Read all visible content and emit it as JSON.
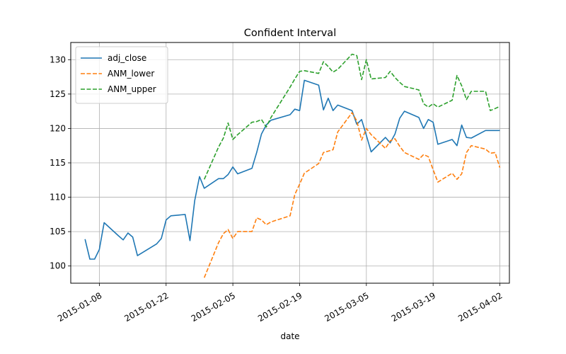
{
  "chart_data": {
    "type": "line",
    "title": "Confident Interval",
    "xlabel": "date",
    "ylabel": "",
    "grid": true,
    "legend_position": "top-left",
    "xlim": [
      "2015-01-02",
      "2015-04-04"
    ],
    "ylim": [
      97.5,
      132.5
    ],
    "x_ticks": [
      "2015-01-08",
      "2015-01-22",
      "2015-02-05",
      "2015-02-19",
      "2015-03-05",
      "2015-03-19",
      "2015-04-02"
    ],
    "y_ticks": [
      "100",
      "105",
      "110",
      "115",
      "120",
      "125",
      "130"
    ],
    "series": [
      {
        "name": "adj_close",
        "color": "#1f77b4",
        "style": "solid",
        "x": [
          "2015-01-05",
          "2015-01-06",
          "2015-01-07",
          "2015-01-08",
          "2015-01-09",
          "2015-01-12",
          "2015-01-13",
          "2015-01-14",
          "2015-01-15",
          "2015-01-16",
          "2015-01-20",
          "2015-01-21",
          "2015-01-22",
          "2015-01-23",
          "2015-01-26",
          "2015-01-27",
          "2015-01-28",
          "2015-01-29",
          "2015-01-30",
          "2015-02-02",
          "2015-02-03",
          "2015-02-04",
          "2015-02-05",
          "2015-02-06",
          "2015-02-09",
          "2015-02-10",
          "2015-02-11",
          "2015-02-12",
          "2015-02-13",
          "2015-02-17",
          "2015-02-18",
          "2015-02-19",
          "2015-02-20",
          "2015-02-23",
          "2015-02-24",
          "2015-02-25",
          "2015-02-26",
          "2015-02-27",
          "2015-03-02",
          "2015-03-03",
          "2015-03-04",
          "2015-03-05",
          "2015-03-06",
          "2015-03-09",
          "2015-03-10",
          "2015-03-11",
          "2015-03-12",
          "2015-03-13",
          "2015-03-16",
          "2015-03-17",
          "2015-03-18",
          "2015-03-19",
          "2015-03-20",
          "2015-03-23",
          "2015-03-24",
          "2015-03-25",
          "2015-03-26",
          "2015-03-27",
          "2015-03-30",
          "2015-03-31",
          "2015-04-01",
          "2015-04-02"
        ],
        "y": [
          103.9,
          101.0,
          101.0,
          102.4,
          106.3,
          104.4,
          103.8,
          104.8,
          104.2,
          101.5,
          103.2,
          104.0,
          106.7,
          107.3,
          107.5,
          103.7,
          109.5,
          113.0,
          111.3,
          112.7,
          112.7,
          113.3,
          114.4,
          113.4,
          114.2,
          116.5,
          119.2,
          120.5,
          121.2,
          122.0,
          122.8,
          122.6,
          127.0,
          126.3,
          122.7,
          124.4,
          122.6,
          123.4,
          122.6,
          120.6,
          121.3,
          119.0,
          116.6,
          118.7,
          117.9,
          119.2,
          121.5,
          122.5,
          121.6,
          120.0,
          121.3,
          120.9,
          117.7,
          118.4,
          117.5,
          120.5,
          118.7,
          118.6,
          119.7,
          119.7,
          119.7,
          119.7
        ]
      },
      {
        "name": "ANM_lower",
        "color": "#ff7f0e",
        "style": "dashed",
        "x": [
          "2015-01-30",
          "2015-02-02",
          "2015-02-03",
          "2015-02-04",
          "2015-02-05",
          "2015-02-06",
          "2015-02-09",
          "2015-02-10",
          "2015-02-11",
          "2015-02-12",
          "2015-02-13",
          "2015-02-17",
          "2015-02-18",
          "2015-02-19",
          "2015-02-20",
          "2015-02-23",
          "2015-02-24",
          "2015-02-25",
          "2015-02-26",
          "2015-02-27",
          "2015-03-02",
          "2015-03-03",
          "2015-03-04",
          "2015-03-05",
          "2015-03-06",
          "2015-03-09",
          "2015-03-10",
          "2015-03-11",
          "2015-03-12",
          "2015-03-13",
          "2015-03-16",
          "2015-03-17",
          "2015-03-18",
          "2015-03-19",
          "2015-03-20",
          "2015-03-23",
          "2015-03-24",
          "2015-03-25",
          "2015-03-26",
          "2015-03-27",
          "2015-03-30",
          "2015-03-31",
          "2015-04-01",
          "2015-04-02"
        ],
        "y": [
          98.3,
          103.4,
          104.7,
          105.3,
          104.0,
          105.0,
          105.0,
          107.0,
          106.7,
          106.0,
          106.4,
          107.3,
          110.4,
          111.9,
          113.5,
          114.9,
          116.5,
          116.7,
          116.9,
          119.5,
          122.3,
          121.1,
          118.3,
          120.0,
          119.1,
          117.1,
          118.2,
          118.5,
          117.4,
          116.5,
          115.5,
          116.2,
          115.9,
          114.0,
          112.2,
          113.5,
          112.6,
          113.4,
          116.5,
          117.5,
          117.0,
          116.4,
          116.5,
          114.3
        ]
      },
      {
        "name": "ANM_upper",
        "color": "#2ca02c",
        "style": "dashed",
        "x": [
          "2015-01-30",
          "2015-02-02",
          "2015-02-03",
          "2015-02-04",
          "2015-02-05",
          "2015-02-06",
          "2015-02-09",
          "2015-02-10",
          "2015-02-11",
          "2015-02-12",
          "2015-02-13",
          "2015-02-17",
          "2015-02-18",
          "2015-02-19",
          "2015-02-20",
          "2015-02-23",
          "2015-02-24",
          "2015-02-25",
          "2015-02-26",
          "2015-02-27",
          "2015-03-02",
          "2015-03-03",
          "2015-03-04",
          "2015-03-05",
          "2015-03-06",
          "2015-03-09",
          "2015-03-10",
          "2015-03-11",
          "2015-03-12",
          "2015-03-13",
          "2015-03-16",
          "2015-03-17",
          "2015-03-18",
          "2015-03-19",
          "2015-03-20",
          "2015-03-23",
          "2015-03-24",
          "2015-03-25",
          "2015-03-26",
          "2015-03-27",
          "2015-03-30",
          "2015-03-31",
          "2015-04-01",
          "2015-04-02"
        ],
        "y": [
          112.6,
          117.3,
          118.6,
          120.8,
          118.4,
          119.1,
          120.9,
          121.0,
          121.3,
          120.2,
          121.6,
          126.0,
          127.2,
          128.3,
          128.4,
          128.0,
          129.7,
          129.0,
          128.2,
          128.6,
          130.8,
          130.6,
          127.1,
          130.0,
          127.2,
          127.4,
          128.3,
          127.4,
          126.7,
          126.1,
          125.6,
          123.6,
          123.1,
          123.6,
          123.1,
          124.1,
          127.7,
          126.2,
          124.2,
          125.4,
          125.4,
          122.6,
          122.9,
          123.2
        ]
      }
    ]
  }
}
